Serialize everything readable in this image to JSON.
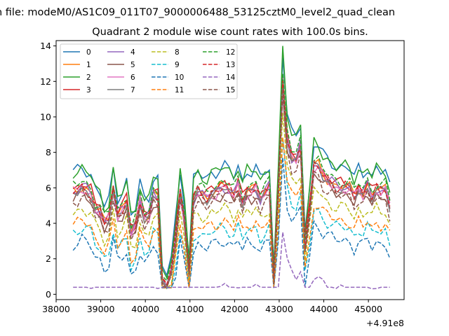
{
  "chart_data": {
    "type": "line",
    "suptitle": "n file: modeM0/AS1C09_011T07_9000006488_53125cztM0_level2_quad_clean",
    "title": "Quadrant 2 module wise count rates with 100.0s bins.",
    "xlabel": "",
    "ylabel": "",
    "x_offset_label": "+4.91e8",
    "xlim": [
      38000,
      45800
    ],
    "ylim": [
      -0.3,
      14.3
    ],
    "x_ticks": [
      38000,
      39000,
      40000,
      41000,
      42000,
      43000,
      44000,
      45000
    ],
    "x_tick_labels": [
      "38000",
      "39000",
      "40000",
      "41000",
      "42000",
      "43000",
      "44000",
      "45000"
    ],
    "y_ticks": [
      0,
      2,
      4,
      6,
      8,
      10,
      12,
      14
    ],
    "y_tick_labels": [
      "0",
      "2",
      "4",
      "6",
      "8",
      "10",
      "12",
      "14"
    ],
    "grid": false,
    "legend_position": "top-left",
    "legend_columns": 4,
    "x": [
      38380,
      38480,
      38580,
      38680,
      38780,
      38880,
      38980,
      39080,
      39180,
      39280,
      39380,
      39480,
      39580,
      39680,
      39780,
      39880,
      39980,
      40080,
      40180,
      40280,
      40380,
      40480,
      40580,
      40680,
      40780,
      40880,
      40980,
      41080,
      41180,
      41280,
      41380,
      41480,
      41580,
      41680,
      41780,
      41880,
      41980,
      42080,
      42180,
      42280,
      42380,
      42480,
      42580,
      42680,
      42780,
      42880,
      42980,
      43080,
      43180,
      43280,
      43380,
      43480,
      43580,
      43680,
      43780,
      43880,
      43980,
      44080,
      44180,
      44280,
      44380,
      44480,
      44580,
      44680,
      44780,
      44880,
      44980,
      45080,
      45180,
      45280,
      45380,
      45480
    ],
    "reference_series": [
      6.0,
      6.1,
      6.3,
      6.1,
      5.9,
      5.1,
      4.9,
      4.2,
      4.5,
      6.2,
      4.7,
      5.0,
      5.5,
      3.7,
      4.1,
      5.5,
      4.6,
      4.7,
      5.8,
      5.7,
      1.0,
      0.6,
      1.6,
      3.6,
      6.0,
      4.5,
      1.5,
      5.6,
      6.0,
      5.8,
      5.7,
      6.0,
      6.0,
      6.2,
      6.3,
      6.1,
      5.8,
      6.4,
      5.5,
      6.1,
      6.0,
      6.2,
      5.6,
      6.0,
      6.3,
      1.1,
      6.0,
      12.3,
      9.0,
      8.0,
      7.9,
      8.6,
      3.0,
      5.0,
      7.5,
      7.4,
      6.9,
      6.7,
      6.5,
      6.3,
      6.3,
      6.3,
      6.2,
      5.7,
      6.2,
      5.9,
      6.3,
      5.8,
      6.2,
      6.0,
      6.1,
      5.2
    ],
    "series": [
      {
        "name": "0",
        "color": "#1f77b4",
        "dash": false,
        "offset": 0.45,
        "scale": 1.07
      },
      {
        "name": "1",
        "color": "#ff7f0e",
        "dash": false,
        "offset": -0.2,
        "scale": 1.0
      },
      {
        "name": "2",
        "color": "#2ca02c",
        "dash": false,
        "offset": 0.25,
        "scale": 1.1
      },
      {
        "name": "3",
        "color": "#d62728",
        "dash": false,
        "offset": -0.05,
        "scale": 1.0
      },
      {
        "name": "4",
        "color": "#9467bd",
        "dash": false,
        "offset": -0.1,
        "scale": 0.98
      },
      {
        "name": "5",
        "color": "#8c564b",
        "dash": false,
        "offset": -0.35,
        "scale": 0.96
      },
      {
        "name": "6",
        "color": "#e377c2",
        "dash": false,
        "offset": -0.15,
        "scale": 0.97
      },
      {
        "name": "7",
        "color": "#7f7f7f",
        "dash": false,
        "offset": -0.25,
        "scale": 0.99
      },
      {
        "name": "8",
        "color": "#bcbd22",
        "dash": true,
        "offset": -0.8,
        "scale": 0.9
      },
      {
        "name": "9",
        "color": "#17becf",
        "dash": true,
        "offset": -1.4,
        "scale": 0.82
      },
      {
        "name": "10",
        "color": "#1f77b4",
        "dash": true,
        "offset": -1.75,
        "scale": 0.76
      },
      {
        "name": "11",
        "color": "#ff7f0e",
        "dash": true,
        "offset": -1.2,
        "scale": 0.85
      },
      {
        "name": "12",
        "color": "#2ca02c",
        "dash": true,
        "offset": 0.1,
        "scale": 1.0
      },
      {
        "name": "13",
        "color": "#d62728",
        "dash": true,
        "offset": -0.1,
        "scale": 0.98
      },
      {
        "name": "14",
        "color": "#9467bd",
        "dash": true,
        "offset": -3.2,
        "scale": 0.55
      },
      {
        "name": "15",
        "color": "#8c564b",
        "dash": true,
        "offset": -0.45,
        "scale": 0.95
      }
    ]
  }
}
